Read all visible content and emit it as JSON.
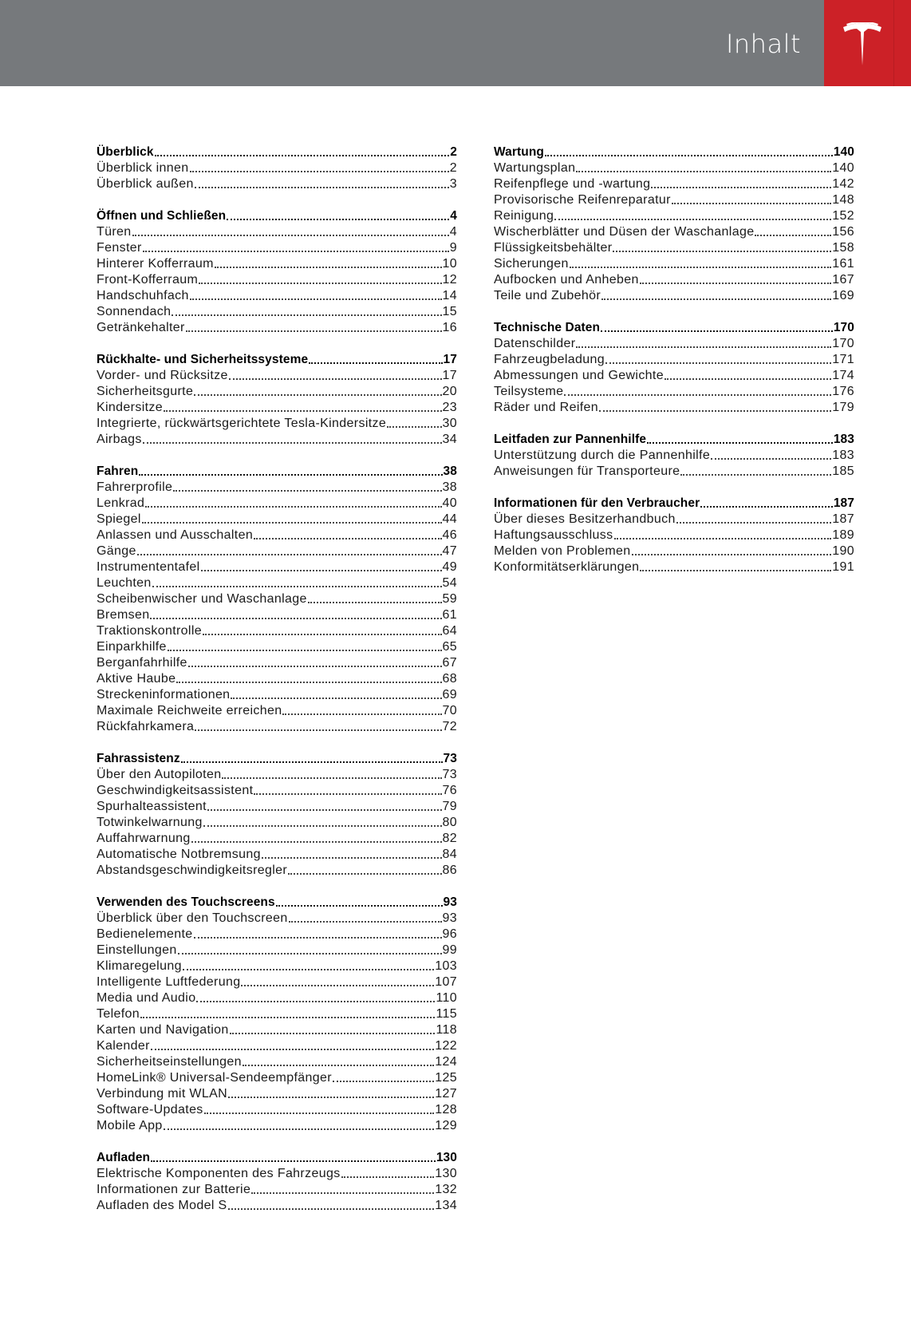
{
  "header": {
    "title": "Inhalt",
    "logo": "tesla-logo",
    "colors": {
      "bar": "#76797c",
      "brand": "#cc2127"
    }
  },
  "columns": [
    [
      {
        "title": "Überblick",
        "page": "2",
        "items": [
          {
            "label": "Überblick innen",
            "page": "2"
          },
          {
            "label": "Überblick außen",
            "page": "3"
          }
        ]
      },
      {
        "title": "Öffnen und Schließen",
        "page": "4",
        "items": [
          {
            "label": "Türen",
            "page": "4"
          },
          {
            "label": "Fenster",
            "page": "9"
          },
          {
            "label": "Hinterer Kofferraum",
            "page": "10"
          },
          {
            "label": "Front-Kofferraum",
            "page": "12"
          },
          {
            "label": "Handschuhfach",
            "page": "14"
          },
          {
            "label": "Sonnendach",
            "page": "15"
          },
          {
            "label": "Getränkehalter",
            "page": "16"
          }
        ]
      },
      {
        "title": "Rückhalte- und Sicherheitssysteme",
        "page": "17",
        "items": [
          {
            "label": "Vorder- und Rücksitze",
            "page": "17"
          },
          {
            "label": "Sicherheitsgurte",
            "page": "20"
          },
          {
            "label": "Kindersitze",
            "page": "23"
          },
          {
            "label": "Integrierte, rückwärtsgerichtete Tesla-Kindersitze",
            "page": "30"
          },
          {
            "label": "Airbags",
            "page": "34"
          }
        ]
      },
      {
        "title": "Fahren",
        "page": "38",
        "items": [
          {
            "label": "Fahrerprofile",
            "page": "38"
          },
          {
            "label": "Lenkrad",
            "page": "40"
          },
          {
            "label": "Spiegel",
            "page": "44"
          },
          {
            "label": "Anlassen und Ausschalten",
            "page": "46"
          },
          {
            "label": "Gänge",
            "page": "47"
          },
          {
            "label": "Instrumententafel",
            "page": "49"
          },
          {
            "label": "Leuchten",
            "page": "54"
          },
          {
            "label": "Scheibenwischer und Waschanlage",
            "page": "59"
          },
          {
            "label": "Bremsen",
            "page": "61"
          },
          {
            "label": "Traktionskontrolle",
            "page": "64"
          },
          {
            "label": "Einparkhilfe",
            "page": "65"
          },
          {
            "label": "Berganfahrhilfe",
            "page": "67"
          },
          {
            "label": "Aktive Haube",
            "page": "68"
          },
          {
            "label": "Streckeninformationen",
            "page": "69"
          },
          {
            "label": "Maximale Reichweite erreichen",
            "page": "70"
          },
          {
            "label": "Rückfahrkamera",
            "page": "72"
          }
        ]
      },
      {
        "title": "Fahrassistenz",
        "page": "73",
        "items": [
          {
            "label": "Über den Autopiloten",
            "page": "73"
          },
          {
            "label": "Geschwindigkeitsassistent",
            "page": "76"
          },
          {
            "label": "Spurhalteassistent",
            "page": "79"
          },
          {
            "label": "Totwinkelwarnung",
            "page": "80"
          },
          {
            "label": "Auffahrwarnung",
            "page": "82"
          },
          {
            "label": "Automatische Notbremsung",
            "page": "84"
          },
          {
            "label": "Abstandsgeschwindigkeitsregler",
            "page": "86"
          }
        ]
      },
      {
        "title": "Verwenden des Touchscreens",
        "page": "93",
        "items": [
          {
            "label": "Überblick über den Touchscreen",
            "page": "93"
          },
          {
            "label": "Bedienelemente",
            "page": "96"
          },
          {
            "label": "Einstellungen",
            "page": "99"
          },
          {
            "label": "Klimaregelung",
            "page": "103"
          },
          {
            "label": "Intelligente Luftfederung",
            "page": "107"
          },
          {
            "label": "Media und Audio",
            "page": "110"
          },
          {
            "label": "Telefon",
            "page": "115"
          },
          {
            "label": "Karten und Navigation",
            "page": "118"
          },
          {
            "label": "Kalender",
            "page": "122"
          },
          {
            "label": "Sicherheitseinstellungen",
            "page": "124"
          },
          {
            "label": "HomeLink® Universal-Sendeempfänger",
            "page": "125"
          },
          {
            "label": "Verbindung mit WLAN",
            "page": "127"
          },
          {
            "label": "Software-Updates",
            "page": "128"
          },
          {
            "label": "Mobile App",
            "page": "129"
          }
        ]
      },
      {
        "title": "Aufladen",
        "page": "130",
        "items": [
          {
            "label": "Elektrische Komponenten des Fahrzeugs",
            "page": "130"
          },
          {
            "label": "Informationen zur Batterie",
            "page": "132"
          },
          {
            "label": "Aufladen des Model S",
            "page": "134"
          }
        ]
      }
    ],
    [
      {
        "title": "Wartung",
        "page": "140",
        "items": [
          {
            "label": "Wartungsplan",
            "page": "140"
          },
          {
            "label": "Reifenpflege und -wartung",
            "page": "142"
          },
          {
            "label": "Provisorische Reifenreparatur",
            "page": "148"
          },
          {
            "label": "Reinigung",
            "page": "152"
          },
          {
            "label": "Wischerblätter und Düsen der Waschanlage",
            "page": "156"
          },
          {
            "label": "Flüssigkeitsbehälter",
            "page": "158"
          },
          {
            "label": "Sicherungen",
            "page": "161"
          },
          {
            "label": "Aufbocken und Anheben",
            "page": "167"
          },
          {
            "label": "Teile und Zubehör",
            "page": "169"
          }
        ]
      },
      {
        "title": "Technische Daten",
        "page": "170",
        "items": [
          {
            "label": "Datenschilder",
            "page": "170"
          },
          {
            "label": "Fahrzeugbeladung",
            "page": "171"
          },
          {
            "label": "Abmessungen und Gewichte",
            "page": "174"
          },
          {
            "label": "Teilsysteme",
            "page": "176"
          },
          {
            "label": "Räder und Reifen",
            "page": "179"
          }
        ]
      },
      {
        "title": "Leitfaden zur Pannenhilfe",
        "page": "183",
        "items": [
          {
            "label": "Unterstützung durch die Pannenhilfe",
            "page": "183"
          },
          {
            "label": "Anweisungen für Transporteure",
            "page": "185"
          }
        ]
      },
      {
        "title": "Informationen für den Verbraucher",
        "page": "187",
        "items": [
          {
            "label": "Über dieses Besitzerhandbuch",
            "page": "187"
          },
          {
            "label": "Haftungsausschluss",
            "page": "189"
          },
          {
            "label": "Melden von Problemen",
            "page": "190"
          },
          {
            "label": "Konformitätserklärungen",
            "page": "191"
          }
        ]
      }
    ]
  ]
}
